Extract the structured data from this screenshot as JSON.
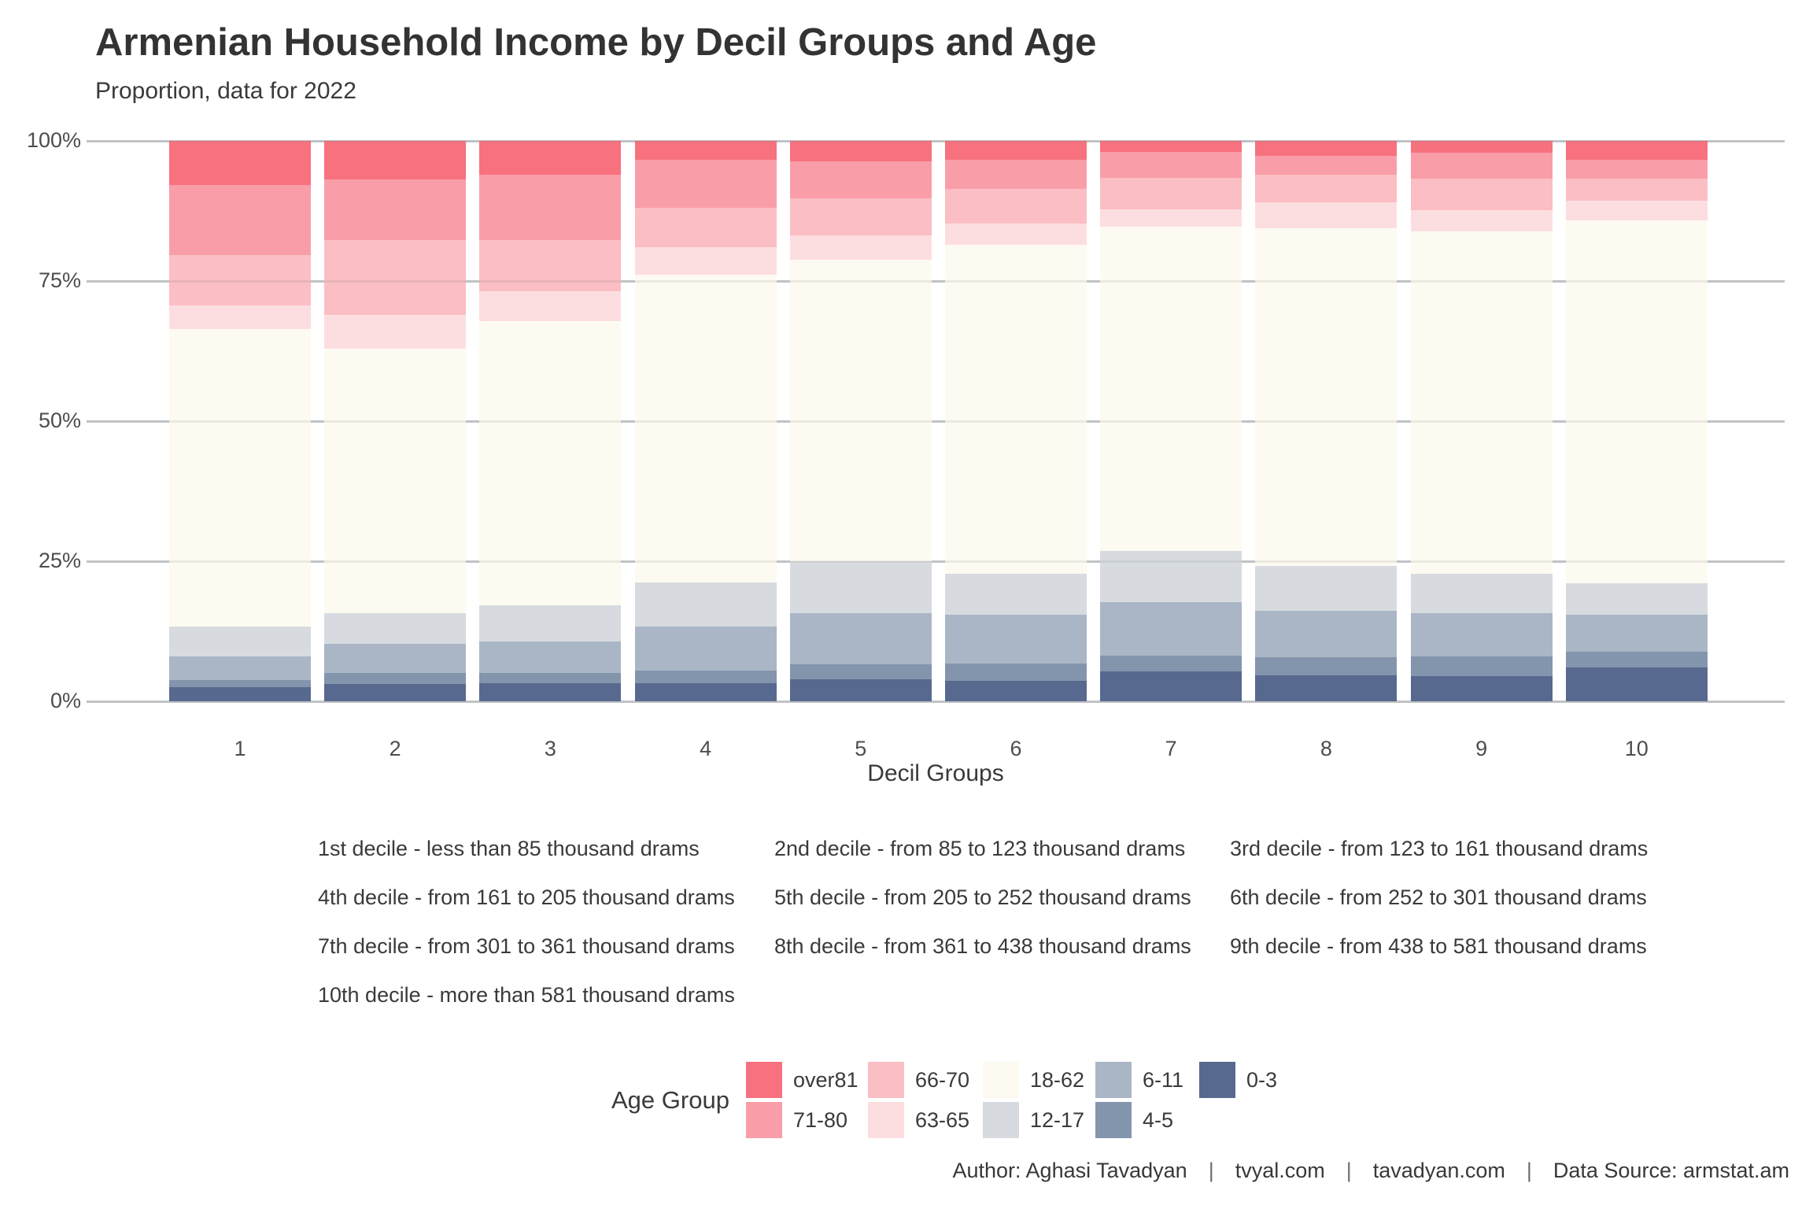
{
  "header": {
    "title": "Armenian Household Income by Decil Groups and Age",
    "subtitle": "Proportion, data for 2022"
  },
  "chart_data": {
    "type": "bar",
    "stacked": true,
    "title": "Armenian Household Income by Decil Groups and Age",
    "subtitle": "Proportion, data for 2022",
    "xlabel": "Decil Groups",
    "ylabel": "",
    "ylim": [
      0,
      100
    ],
    "y_ticks": [
      0,
      25,
      50,
      75,
      100
    ],
    "y_tick_labels": [
      "0%",
      "25%",
      "50%",
      "75%",
      "100%"
    ],
    "grid": "horizontal",
    "legend_position": "bottom",
    "categories": [
      "1",
      "2",
      "3",
      "4",
      "5",
      "6",
      "7",
      "8",
      "9",
      "10"
    ],
    "stack_order_bottom_to_top": [
      "0-3",
      "4-5",
      "6-11",
      "12-17",
      "18-62",
      "63-65",
      "66-70",
      "71-80",
      "over81"
    ],
    "series": [
      {
        "name": "0-3",
        "color": "#57698F",
        "values": [
          2.5,
          3.1,
          3.2,
          3.3,
          3.9,
          3.7,
          5.3,
          4.7,
          4.5,
          6.0
        ]
      },
      {
        "name": "4-5",
        "color": "#8394AD",
        "values": [
          1.3,
          1.9,
          1.9,
          2.2,
          2.7,
          3.0,
          2.9,
          3.1,
          3.5,
          2.9
        ]
      },
      {
        "name": "6-11",
        "color": "#AAB6C5",
        "values": [
          4.2,
          5.2,
          5.6,
          7.9,
          9.2,
          8.8,
          9.5,
          8.4,
          7.8,
          6.6
        ]
      },
      {
        "name": "12-17",
        "color": "#D7DBE0",
        "values": [
          5.3,
          5.5,
          6.5,
          7.8,
          9.2,
          7.2,
          9.1,
          8.0,
          7.0,
          5.6
        ]
      },
      {
        "name": "18-62",
        "color": "#FDFBF1",
        "values": [
          53.1,
          47.2,
          50.6,
          55.0,
          53.8,
          58.7,
          57.9,
          60.2,
          61.1,
          64.7
        ]
      },
      {
        "name": "63-65",
        "color": "#FDDEE0",
        "values": [
          4.2,
          6.1,
          5.4,
          4.9,
          4.4,
          3.9,
          3.1,
          4.7,
          3.8,
          3.5
        ]
      },
      {
        "name": "66-70",
        "color": "#FBBEC4",
        "values": [
          9.1,
          13.3,
          9.1,
          7.0,
          6.6,
          6.1,
          5.6,
          4.9,
          5.6,
          4.0
        ]
      },
      {
        "name": "71-80",
        "color": "#F99EA9",
        "values": [
          12.4,
          10.8,
          11.7,
          8.5,
          6.5,
          5.3,
          4.6,
          3.4,
          4.6,
          3.3
        ]
      },
      {
        "name": "over81",
        "color": "#F7717F",
        "values": [
          7.9,
          6.9,
          6.0,
          3.4,
          3.7,
          3.3,
          2.0,
          2.6,
          2.1,
          3.4
        ]
      }
    ]
  },
  "legend": {
    "title": "Age Group",
    "display_order": [
      "over81",
      "71-80",
      "66-70",
      "63-65",
      "18-62",
      "12-17",
      "6-11",
      "4-5",
      "0-3"
    ]
  },
  "decile_notes": [
    "1st decile - less than 85 thousand drams",
    "2nd decile - from 85 to 123 thousand drams",
    "3rd decile - from 123 to 161 thousand drams",
    "4th decile - from 161 to 205 thousand drams",
    "5th decile - from 205 to 252 thousand drams",
    "6th decile - from 252 to 301 thousand drams",
    "7th decile - from 301 to 361 thousand drams",
    "8th decile - from 361 to 438 thousand drams",
    "9th decile - from 438 to 581 thousand drams",
    "10th decile - more than 581 thousand drams"
  ],
  "footer": {
    "segments": [
      "Author: Aghasi Tavadyan",
      "tvyal.com",
      "tavadyan.com",
      "Data Source: armstat.am"
    ],
    "separator": "|"
  }
}
